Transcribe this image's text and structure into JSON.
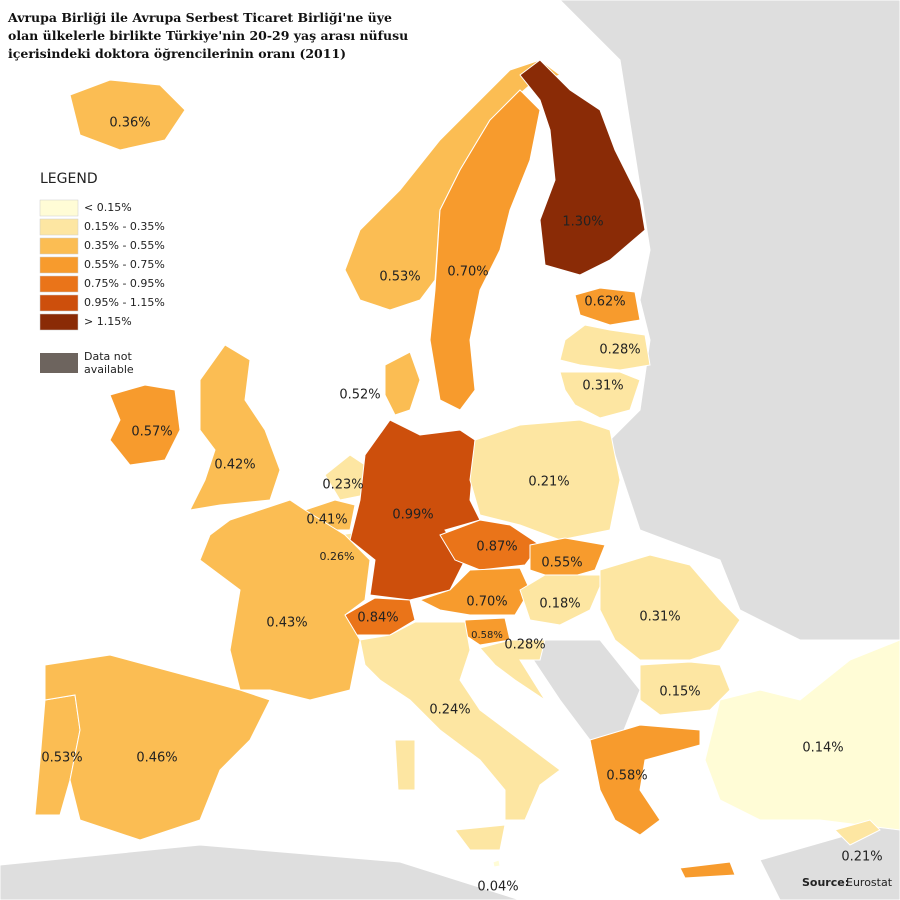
{
  "title": [
    "Avrupa Birliği ile Avrupa Serbest Ticaret Birliği'ne üye",
    "olan ülkelerle birlikte Türkiye'nin 20-29 yaş arası nüfusu",
    "içerisindeki doktora öğrencilerinin oranı (2011)"
  ],
  "legend": {
    "title": "LEGEND",
    "items": [
      {
        "label": "< 0.15%",
        "color": "#fffcd6"
      },
      {
        "label": "0.15% - 0.35%",
        "color": "#fde6a2"
      },
      {
        "label": "0.35% - 0.55%",
        "color": "#fbbd53"
      },
      {
        "label": "0.55% - 0.75%",
        "color": "#f79b2d"
      },
      {
        "label": "0.75% - 0.95%",
        "color": "#ea7419"
      },
      {
        "label": "0.95% - 1.15%",
        "color": "#cd4f0c"
      },
      {
        "label": "> 1.15%",
        "color": "#8a2b06"
      }
    ],
    "no_data": {
      "lines": [
        "Data not",
        "available"
      ],
      "color": "#6d645e"
    }
  },
  "regions": [
    {
      "label": "0.36%",
      "color": "#fbbd53"
    },
    {
      "label": "0.53%",
      "color": "#fbbd53"
    },
    {
      "label": "0.70%",
      "color": "#f79b2d"
    },
    {
      "label": "1.30%",
      "color": "#8a2b06"
    },
    {
      "label": "0.62%",
      "color": "#f79b2d"
    },
    {
      "label": "0.28%",
      "color": "#fde6a2"
    },
    {
      "label": "0.31%",
      "color": "#fde6a2"
    },
    {
      "label": "0.52%",
      "color": "#fbbd53"
    },
    {
      "label": "0.57%",
      "color": "#f79b2d"
    },
    {
      "label": "0.42%",
      "color": "#fbbd53"
    },
    {
      "label": "0.23%",
      "color": "#fde6a2"
    },
    {
      "label": "0.41%",
      "color": "#fbbd53"
    },
    {
      "label": "0.26%",
      "color": "#fde6a2"
    },
    {
      "label": "0.99%",
      "color": "#cd4f0c"
    },
    {
      "label": "0.21%",
      "color": "#fde6a2"
    },
    {
      "label": "0.87%",
      "color": "#ea7419"
    },
    {
      "label": "0.55%",
      "color": "#f79b2d"
    },
    {
      "label": "0.70%",
      "color": "#f79b2d"
    },
    {
      "label": "0.18%",
      "color": "#fde6a2"
    },
    {
      "label": "0.31%",
      "color": "#fde6a2"
    },
    {
      "label": "0.84%",
      "color": "#ea7419"
    },
    {
      "label": "0.43%",
      "color": "#fbbd53"
    },
    {
      "label": "0.58%",
      "color": "#f79b2d"
    },
    {
      "label": "0.28%",
      "color": "#fde6a2"
    },
    {
      "label": "0.24%",
      "color": "#fde6a2"
    },
    {
      "label": "0.15%",
      "color": "#fde6a2"
    },
    {
      "label": "0.14%",
      "color": "#fffcd6"
    },
    {
      "label": "0.58%",
      "color": "#f79b2d"
    },
    {
      "label": "0.53%",
      "color": "#fbbd53"
    },
    {
      "label": "0.46%",
      "color": "#fbbd53"
    },
    {
      "label": "0.04%",
      "color": "#fffcd6"
    },
    {
      "label": "0.21%",
      "color": "#fde6a2"
    }
  ],
  "source": {
    "prefix": "Source:",
    "name": "Eurostat"
  }
}
